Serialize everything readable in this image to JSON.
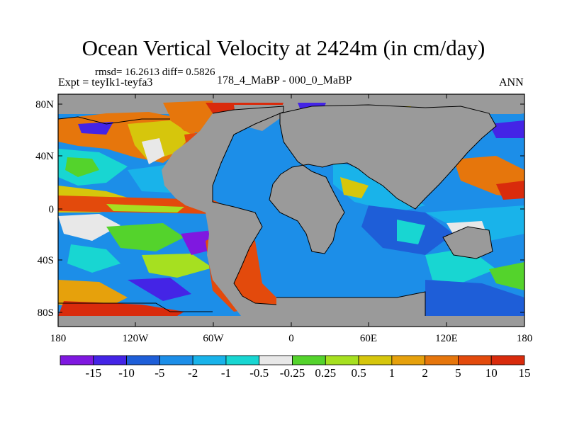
{
  "title": "Ocean Vertical Velocity at 2424m (in cm/day)",
  "stats": "rmsd= 16.2613 diff= 0.5826",
  "experiment": "Expt = teyIk1-teyfa3",
  "case_label": "178_4_MaBP - 000_0_MaBP",
  "season": "ANN",
  "lat_labels": [
    "80N",
    "40N",
    "0",
    "40S",
    "80S"
  ],
  "lon_labels": [
    "180",
    "120W",
    "60W",
    "0",
    "60E",
    "120E",
    "180"
  ],
  "colorbar": {
    "colors": [
      "#7f18e0",
      "#4424e6",
      "#1e5ed8",
      "#1c8ee8",
      "#19b3ea",
      "#18d6d2",
      "#e8e8e8",
      "#54d32c",
      "#a6e020",
      "#d6c60c",
      "#e6a10c",
      "#e6760c",
      "#e34a0c",
      "#d92b0c"
    ],
    "labels": [
      "-15",
      "-10",
      "-5",
      "-2",
      "-1",
      "-0.5",
      "-0.25",
      "0.25",
      "0.5",
      "1",
      "2",
      "5",
      "10",
      "15"
    ]
  },
  "land_color": "#9a9a9a"
}
